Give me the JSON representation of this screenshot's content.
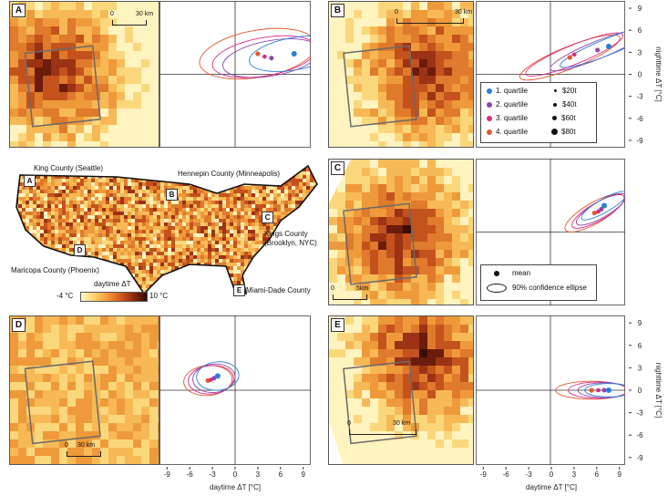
{
  "panels": {
    "A": {
      "letter": "A",
      "scale_zero": "0",
      "scale_label": "30 km"
    },
    "B": {
      "letter": "B",
      "scale_zero": "0",
      "scale_label": "30 km"
    },
    "C": {
      "letter": "C",
      "scale_zero": "0",
      "scale_label": "5km"
    },
    "D": {
      "letter": "D",
      "scale_zero": "0",
      "scale_label": "30 km"
    },
    "E": {
      "letter": "E",
      "scale_zero": "0",
      "scale_label": "30 km"
    }
  },
  "overview": {
    "labels": {
      "king": "King County (Seattle)",
      "hennepin": "Hennepin County (Minneapolis)",
      "kings": "Kings County\n(Brooklyn, NYC)",
      "maricopa": "Maricopa County (Phoenix)",
      "miami": "Miami-Dade County"
    },
    "callouts": [
      "A",
      "B",
      "C",
      "D",
      "E"
    ],
    "colorbar": {
      "title": "daytime ΔT",
      "min_label": "-4 °C",
      "max_label": "10 °C"
    }
  },
  "axes": {
    "ticks": [
      "-9",
      "-6",
      "-3",
      "0",
      "3",
      "6",
      "9"
    ],
    "xlabel": "daytime ΔT [°C]",
    "ylabel": "nighttime ΔT [°C]"
  },
  "legend_quartiles": {
    "items": [
      {
        "label": "1. quartile",
        "color": "#2b7fd4"
      },
      {
        "label": "2. quartile",
        "color": "#8e44ad"
      },
      {
        "label": "3. quartile",
        "color": "#e0267f"
      },
      {
        "label": "4. quartile",
        "color": "#e4572e"
      }
    ],
    "sizes": [
      "$20t",
      "$40t",
      "$60t",
      "$80t"
    ]
  },
  "legend_shapes": {
    "mean": "mean",
    "ellipse": "90% confidence ellipse"
  },
  "chart_data": [
    {
      "panel": "A",
      "type": "scatter",
      "xlim": [
        -10,
        10
      ],
      "ylim": [
        -10,
        10
      ],
      "series": [
        {
          "name": "1. quartile",
          "mean": [
            7.8,
            2.8
          ],
          "ellipse": {
            "rx": 6.0,
            "ry": 2.2,
            "angle": 10
          }
        },
        {
          "name": "2. quartile",
          "mean": [
            4.8,
            2.2
          ],
          "ellipse": {
            "rx": 6.5,
            "ry": 2.4,
            "angle": 10
          }
        },
        {
          "name": "3. quartile",
          "mean": [
            3.9,
            2.4
          ],
          "ellipse": {
            "rx": 7.0,
            "ry": 2.6,
            "angle": 10
          }
        },
        {
          "name": "4. quartile",
          "mean": [
            3.0,
            2.8
          ],
          "ellipse": {
            "rx": 7.8,
            "ry": 3.2,
            "angle": 10
          }
        }
      ]
    },
    {
      "panel": "B",
      "type": "scatter",
      "xlim": [
        -10,
        10
      ],
      "ylim": [
        -10,
        10
      ],
      "series": [
        {
          "name": "1. quartile",
          "mean": [
            7.8,
            3.8
          ],
          "ellipse": {
            "rx": 7.0,
            "ry": 1.1,
            "angle": 22
          }
        },
        {
          "name": "2. quartile",
          "mean": [
            6.3,
            3.3
          ],
          "ellipse": {
            "rx": 6.8,
            "ry": 1.2,
            "angle": 22
          }
        },
        {
          "name": "3. quartile",
          "mean": [
            3.2,
            2.7
          ],
          "ellipse": {
            "rx": 7.0,
            "ry": 1.3,
            "angle": 22
          }
        },
        {
          "name": "4. quartile",
          "mean": [
            2.6,
            2.3
          ],
          "ellipse": {
            "rx": 7.2,
            "ry": 1.5,
            "angle": 22
          }
        }
      ]
    },
    {
      "panel": "C",
      "type": "scatter",
      "xlim": [
        -10,
        10
      ],
      "ylim": [
        -10,
        10
      ],
      "series": [
        {
          "name": "1. quartile",
          "mean": [
            7.2,
            3.6
          ],
          "ellipse": {
            "rx": 3.5,
            "ry": 0.9,
            "angle": 30
          }
        },
        {
          "name": "2. quartile",
          "mean": [
            6.8,
            3.1
          ],
          "ellipse": {
            "rx": 3.8,
            "ry": 1.1,
            "angle": 30
          }
        },
        {
          "name": "3. quartile",
          "mean": [
            6.4,
            2.8
          ],
          "ellipse": {
            "rx": 4.0,
            "ry": 1.2,
            "angle": 30
          }
        },
        {
          "name": "4. quartile",
          "mean": [
            5.9,
            2.6
          ],
          "ellipse": {
            "rx": 4.5,
            "ry": 1.4,
            "angle": 30
          }
        }
      ]
    },
    {
      "panel": "D",
      "type": "scatter",
      "xlim": [
        -10,
        10
      ],
      "ylim": [
        -10,
        10
      ],
      "series": [
        {
          "name": "1. quartile",
          "mean": [
            -2.3,
            1.9
          ],
          "ellipse": {
            "rx": 2.8,
            "ry": 1.9,
            "angle": 5
          }
        },
        {
          "name": "2. quartile",
          "mean": [
            -2.8,
            1.6
          ],
          "ellipse": {
            "rx": 2.8,
            "ry": 1.9,
            "angle": 5
          }
        },
        {
          "name": "3. quartile",
          "mean": [
            -3.2,
            1.4
          ],
          "ellipse": {
            "rx": 3.0,
            "ry": 1.9,
            "angle": 5
          }
        },
        {
          "name": "4. quartile",
          "mean": [
            -3.6,
            1.3
          ],
          "ellipse": {
            "rx": 3.2,
            "ry": 2.0,
            "angle": 5
          }
        }
      ]
    },
    {
      "panel": "E",
      "type": "scatter",
      "xlim": [
        -10,
        10
      ],
      "ylim": [
        -10,
        10
      ],
      "series": [
        {
          "name": "1. quartile",
          "mean": [
            7.8,
            0.0
          ],
          "ellipse": {
            "rx": 3.2,
            "ry": 0.9,
            "angle": 0
          }
        },
        {
          "name": "2. quartile",
          "mean": [
            7.2,
            0.0
          ],
          "ellipse": {
            "rx": 3.5,
            "ry": 1.0,
            "angle": 0
          }
        },
        {
          "name": "3. quartile",
          "mean": [
            6.4,
            0.0
          ],
          "ellipse": {
            "rx": 4.0,
            "ry": 1.1,
            "angle": 0
          }
        },
        {
          "name": "4. quartile",
          "mean": [
            5.5,
            0.0
          ],
          "ellipse": {
            "rx": 4.8,
            "ry": 1.2,
            "angle": 0
          }
        }
      ]
    }
  ]
}
